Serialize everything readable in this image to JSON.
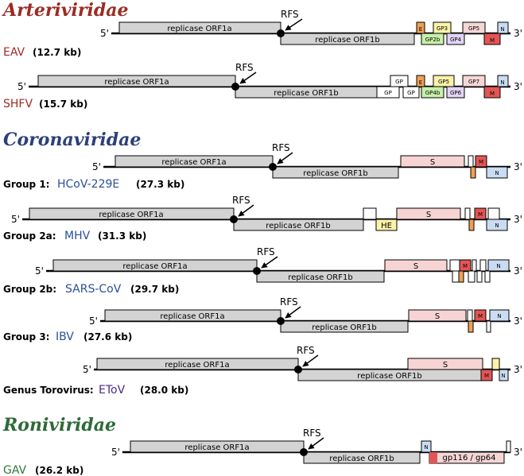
{
  "families": [
    {
      "name": "Arteriviridae",
      "color": "#9b2b23"
    },
    {
      "name": "Coronaviridae",
      "color": "#2b3f7a"
    },
    {
      "name": "Roniviridae",
      "color": "#2f6a3a"
    }
  ],
  "labels": {
    "five_prime": "5'",
    "three_prime": "3'",
    "rfs": "RFS",
    "orf1a": "replicase ORF1a",
    "orf1b": "replicase ORF1b"
  },
  "colors": {
    "replicase": "#d3d3d3",
    "spike": "#f7d4d4",
    "membrane": "#e35555",
    "nucleocapsid": "#c9dcf2",
    "envelope": "#f0a055",
    "gp_yellow": "#fbf3a8",
    "gp_green": "#c7f0a8",
    "gp_purple": "#e2d4f5",
    "gp_pink": "#f5d6d6",
    "he": "#fbf3a8"
  },
  "genomes": [
    {
      "group": "",
      "virus": "EAV",
      "size": "(12.7 kb)",
      "name_color": "#9b2b23"
    },
    {
      "group": "",
      "virus": "SHFV",
      "size": "(15.7 kb)",
      "name_color": "#9b2b23"
    },
    {
      "group": "Group 1:",
      "virus": "HCoV-229E",
      "size": "(27.3 kb)",
      "name_color": "#2b4f9a"
    },
    {
      "group": "Group 2a:",
      "virus": "MHV",
      "size": "(31.3 kb)",
      "name_color": "#2b4f9a"
    },
    {
      "group": "Group 2b:",
      "virus": "SARS-CoV",
      "size": "(29.7 kb)",
      "name_color": "#2b4f9a"
    },
    {
      "group": "Group 3:",
      "virus": "IBV",
      "size": "(27.6 kb)",
      "name_color": "#2b4f9a"
    },
    {
      "group": "Genus Torovirus:",
      "virus": "EToV",
      "size": "(28.0 kb)",
      "name_color": "#4a2b8a"
    },
    {
      "group": "",
      "virus": "GAV",
      "size": "(26.2 kb)",
      "name_color": "#2f7a3a"
    }
  ],
  "genes": {
    "E": "E",
    "M": "M",
    "N": "N",
    "S": "S",
    "HE": "HE",
    "GP": "GP",
    "GP3": "GP3",
    "GP5": "GP5",
    "GP7": "GP7",
    "GP2b": "GP2b",
    "GP4": "GP4",
    "GP4b": "GP4b",
    "GP6": "GP6",
    "gp116_gp64": "gp116  /  gp64"
  }
}
